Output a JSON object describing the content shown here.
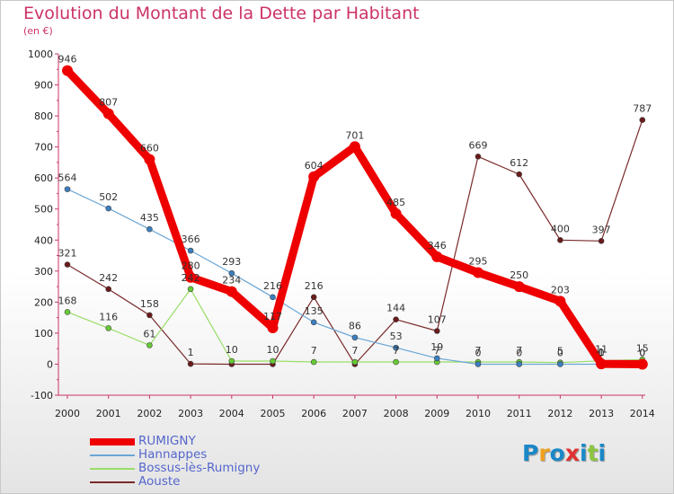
{
  "header": {
    "title": "Evolution du Montant de la Dette par Habitant",
    "unit": "(en €)"
  },
  "logo": {
    "letters": [
      "P",
      "r",
      "o",
      "x",
      "i",
      "t",
      "i"
    ],
    "colors": [
      "#1a88c8",
      "#f0a020",
      "#1a88c8",
      "#e03030",
      "#1a88c8",
      "#8cc63f",
      "#1a88c8"
    ],
    "icon": "proxiti-logo"
  },
  "chart_data": {
    "type": "line",
    "title": "Evolution du Montant de la Dette par Habitant",
    "ylabel": "(en €)",
    "xlabel": "",
    "x": [
      "2000",
      "2001",
      "2002",
      "2003",
      "2004",
      "2005",
      "2006",
      "2007",
      "2008",
      "2009",
      "2010",
      "2011",
      "2012",
      "2013",
      "2014"
    ],
    "ylim": [
      -100,
      1000
    ],
    "yticks": [
      "-100",
      "0",
      "100",
      "200",
      "300",
      "400",
      "500",
      "600",
      "700",
      "800",
      "900",
      "1000"
    ],
    "grid": false,
    "legend_position": "bottom-left",
    "series": [
      {
        "name": "RUMIGNY",
        "color": "#ee0000",
        "marker": "#ee0000",
        "values": [
          946,
          807,
          660,
          280,
          234,
          117,
          604,
          701,
          485,
          346,
          295,
          250,
          203,
          1,
          0
        ],
        "labels": [
          "946",
          "807",
          "660",
          "280",
          "234",
          "117",
          "604",
          "701",
          "485",
          "346",
          "295",
          "250",
          "203",
          "1",
          "0"
        ]
      },
      {
        "name": "Hannappes",
        "color": "#6aa6d6",
        "marker": "#3a7fc0",
        "values": [
          564,
          502,
          435,
          366,
          293,
          216,
          135,
          86,
          53,
          19,
          0,
          0,
          0,
          0,
          0
        ],
        "labels": [
          "564",
          "502",
          "435",
          "366",
          "293",
          "216",
          "135",
          "86",
          "53",
          "19",
          "0",
          "0",
          "0",
          "0",
          "0"
        ]
      },
      {
        "name": "Bossus-lès-Rumigny",
        "color": "#99dd66",
        "marker": "#66cc33",
        "values": [
          168,
          116,
          61,
          242,
          10,
          10,
          7,
          7,
          7,
          7,
          7,
          7,
          5,
          11,
          15
        ],
        "labels": [
          "168",
          "116",
          "61",
          "242",
          "10",
          "10",
          "7",
          "7",
          "7",
          "7",
          "7",
          "7",
          "5",
          "11",
          "15"
        ]
      },
      {
        "name": "Aouste",
        "color": "#7a2a2a",
        "marker": "#6a1a1a",
        "values": [
          321,
          242,
          158,
          1,
          0,
          0,
          216,
          0,
          144,
          107,
          669,
          612,
          400,
          397,
          787
        ],
        "labels": [
          "321",
          "242",
          "158",
          "1",
          "",
          "",
          "216",
          "",
          "144",
          "107",
          "669",
          "612",
          "400",
          "397",
          "787"
        ]
      }
    ]
  }
}
